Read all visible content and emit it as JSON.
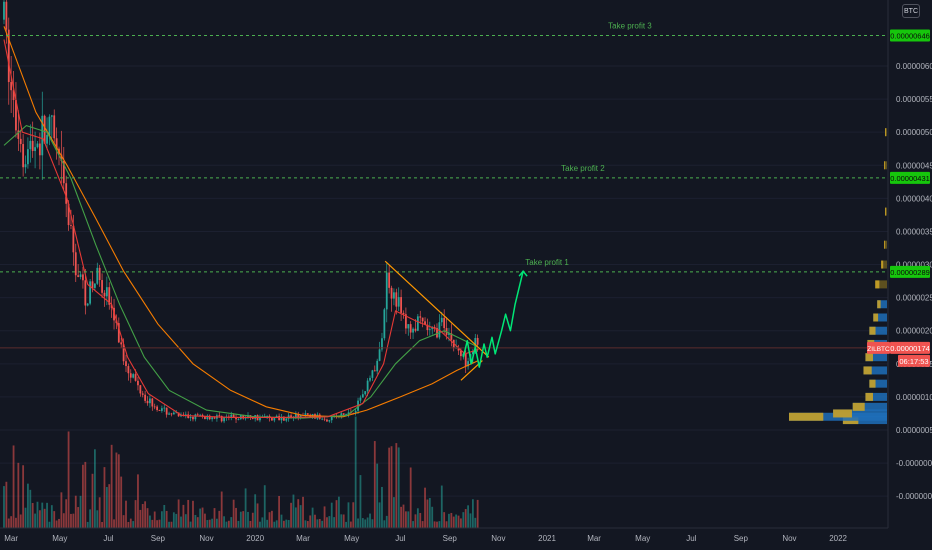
{
  "currency_button": "BTC",
  "colors": {
    "background": "#131722",
    "up": "#26a69a",
    "down": "#ef5350",
    "ma_fast": "#e53935",
    "ma_mid": "#43a047",
    "ma_slow": "#f57c00",
    "target_line": "#4caf50",
    "trendline": "#ff9800",
    "projection": "#00e676",
    "current_price": "#ef5350"
  },
  "chart_data": {
    "type": "candlestick",
    "symbol": "ZILBTC",
    "x_ticks": [
      "Mar",
      "May",
      "Jul",
      "Sep",
      "Nov",
      "2020",
      "Mar",
      "May",
      "Jul",
      "Sep",
      "Nov",
      "2021",
      "Mar",
      "May",
      "Jul",
      "Sep",
      "Nov",
      "2022"
    ],
    "y_ticks": [
      "0.00000600",
      "0.00000550",
      "0.00000500",
      "0.00000450",
      "0.00000400",
      "0.00000350",
      "0.00000300",
      "0.00000250",
      "0.00000200",
      "0.00000150",
      "0.00000100",
      "0.00000050",
      "-0.00000000",
      "-0.00000050"
    ],
    "ylim": [
      -7e-07,
      6.8e-06
    ],
    "price_series": [
      {
        "d": "2019-02-20",
        "v": 6.7e-06
      },
      {
        "d": "2019-03-05",
        "v": 5.2e-06
      },
      {
        "d": "2019-03-20",
        "v": 4.7e-06
      },
      {
        "d": "2019-04-05",
        "v": 4.9e-06
      },
      {
        "d": "2019-04-20",
        "v": 5e-06
      },
      {
        "d": "2019-05-05",
        "v": 4.2e-06
      },
      {
        "d": "2019-05-20",
        "v": 3e-06
      },
      {
        "d": "2019-06-05",
        "v": 2.5e-06
      },
      {
        "d": "2019-06-20",
        "v": 2.9e-06
      },
      {
        "d": "2019-07-05",
        "v": 2.3e-06
      },
      {
        "d": "2019-07-20",
        "v": 1.6e-06
      },
      {
        "d": "2019-08-05",
        "v": 1.2e-06
      },
      {
        "d": "2019-08-20",
        "v": 9.5e-07
      },
      {
        "d": "2019-09-05",
        "v": 8e-07
      },
      {
        "d": "2019-10-01",
        "v": 7e-07
      },
      {
        "d": "2019-11-01",
        "v": 7e-07
      },
      {
        "d": "2019-12-01",
        "v": 6.8e-07
      },
      {
        "d": "2020-01-01",
        "v": 7e-07
      },
      {
        "d": "2020-02-01",
        "v": 6.8e-07
      },
      {
        "d": "2020-03-01",
        "v": 7.2e-07
      },
      {
        "d": "2020-04-01",
        "v": 6.8e-07
      },
      {
        "d": "2020-04-20",
        "v": 7.2e-07
      },
      {
        "d": "2020-05-05",
        "v": 8e-07
      },
      {
        "d": "2020-05-20",
        "v": 1.2e-06
      },
      {
        "d": "2020-06-05",
        "v": 1.6e-06
      },
      {
        "d": "2020-06-15",
        "v": 2.9e-06
      },
      {
        "d": "2020-06-25",
        "v": 2.5e-06
      },
      {
        "d": "2020-07-10",
        "v": 2e-06
      },
      {
        "d": "2020-07-25",
        "v": 2.1e-06
      },
      {
        "d": "2020-08-10",
        "v": 1.95e-06
      },
      {
        "d": "2020-08-25",
        "v": 2.15e-06
      },
      {
        "d": "2020-09-05",
        "v": 1.8e-06
      },
      {
        "d": "2020-09-20",
        "v": 1.55e-06
      },
      {
        "d": "2020-10-01",
        "v": 1.8e-06
      },
      {
        "d": "2020-10-07",
        "v": 1.74e-06
      }
    ],
    "ma_fast": [
      {
        "d": "2019-02-20",
        "v": 6.4e-06
      },
      {
        "d": "2019-03-15",
        "v": 5e-06
      },
      {
        "d": "2019-04-10",
        "v": 4.9e-06
      },
      {
        "d": "2019-05-10",
        "v": 4e-06
      },
      {
        "d": "2019-06-05",
        "v": 2.7e-06
      },
      {
        "d": "2019-07-05",
        "v": 2.4e-06
      },
      {
        "d": "2019-07-25",
        "v": 1.6e-06
      },
      {
        "d": "2019-08-20",
        "v": 1.05e-06
      },
      {
        "d": "2019-10-01",
        "v": 7.2e-07
      },
      {
        "d": "2019-12-01",
        "v": 6.9e-07
      },
      {
        "d": "2020-02-01",
        "v": 6.9e-07
      },
      {
        "d": "2020-04-01",
        "v": 7e-07
      },
      {
        "d": "2020-05-15",
        "v": 9e-07
      },
      {
        "d": "2020-06-10",
        "v": 1.5e-06
      },
      {
        "d": "2020-06-25",
        "v": 2.3e-06
      },
      {
        "d": "2020-07-20",
        "v": 2.15e-06
      },
      {
        "d": "2020-08-20",
        "v": 2e-06
      },
      {
        "d": "2020-09-20",
        "v": 1.65e-06
      },
      {
        "d": "2020-10-07",
        "v": 1.72e-06
      }
    ],
    "ma_mid": [
      {
        "d": "2019-02-20",
        "v": 4.8e-06
      },
      {
        "d": "2019-03-20",
        "v": 5.1e-06
      },
      {
        "d": "2019-04-15",
        "v": 5e-06
      },
      {
        "d": "2019-05-15",
        "v": 4.3e-06
      },
      {
        "d": "2019-06-15",
        "v": 3.3e-06
      },
      {
        "d": "2019-07-15",
        "v": 2.4e-06
      },
      {
        "d": "2019-08-15",
        "v": 1.6e-06
      },
      {
        "d": "2019-09-15",
        "v": 1.1e-06
      },
      {
        "d": "2019-11-01",
        "v": 8e-07
      },
      {
        "d": "2020-01-01",
        "v": 7e-07
      },
      {
        "d": "2020-03-01",
        "v": 6.8e-07
      },
      {
        "d": "2020-04-25",
        "v": 7.2e-07
      },
      {
        "d": "2020-05-25",
        "v": 1e-06
      },
      {
        "d": "2020-06-25",
        "v": 1.5e-06
      },
      {
        "d": "2020-07-25",
        "v": 1.85e-06
      },
      {
        "d": "2020-08-25",
        "v": 2e-06
      },
      {
        "d": "2020-09-20",
        "v": 1.85e-06
      },
      {
        "d": "2020-10-07",
        "v": 1.75e-06
      }
    ],
    "ma_slow": [
      {
        "d": "2019-02-20",
        "v": 6.6e-06
      },
      {
        "d": "2019-04-01",
        "v": 5.3e-06
      },
      {
        "d": "2019-05-10",
        "v": 4.5e-06
      },
      {
        "d": "2019-06-15",
        "v": 3.7e-06
      },
      {
        "d": "2019-07-20",
        "v": 2.9e-06
      },
      {
        "d": "2019-09-01",
        "v": 2.1e-06
      },
      {
        "d": "2019-10-15",
        "v": 1.5e-06
      },
      {
        "d": "2019-12-01",
        "v": 1.1e-06
      },
      {
        "d": "2020-01-15",
        "v": 8.5e-07
      },
      {
        "d": "2020-03-01",
        "v": 7.2e-07
      },
      {
        "d": "2020-04-20",
        "v": 7e-07
      },
      {
        "d": "2020-05-20",
        "v": 8e-07
      },
      {
        "d": "2020-07-01",
        "v": 1e-06
      },
      {
        "d": "2020-08-10",
        "v": 1.2e-06
      },
      {
        "d": "2020-09-10",
        "v": 1.4e-06
      },
      {
        "d": "2020-10-07",
        "v": 1.55e-06
      }
    ],
    "volume_profile": [
      {
        "v": 6.5e-07,
        "w": 0.45
      },
      {
        "v": 7e-07,
        "w": 1.0
      },
      {
        "v": 7.5e-07,
        "w": 0.55
      },
      {
        "v": 8.5e-07,
        "w": 0.35
      },
      {
        "v": 1e-06,
        "w": 0.22
      },
      {
        "v": 1.2e-06,
        "w": 0.18
      },
      {
        "v": 1.4e-06,
        "w": 0.24
      },
      {
        "v": 1.6e-06,
        "w": 0.22
      },
      {
        "v": 1.8e-06,
        "w": 0.2
      },
      {
        "v": 2e-06,
        "w": 0.18
      },
      {
        "v": 2.2e-06,
        "w": 0.14
      },
      {
        "v": 2.4e-06,
        "w": 0.1
      },
      {
        "v": 2.7e-06,
        "w": 0.12
      },
      {
        "v": 3e-06,
        "w": 0.06
      },
      {
        "v": 3.3e-06,
        "w": 0.03
      },
      {
        "v": 3.8e-06,
        "w": 0.02
      },
      {
        "v": 4.5e-06,
        "w": 0.03
      },
      {
        "v": 5e-06,
        "w": 0.02
      }
    ],
    "take_profits": [
      {
        "label": "Take profit 3",
        "price": 6.46e-06,
        "badge": "0.00000646",
        "label_date": "2021-04-15"
      },
      {
        "label": "Take profit 2",
        "price": 4.31e-06,
        "badge": "0.00000431",
        "label_date": "2021-02-15"
      },
      {
        "label": "Take profit 1",
        "price": 2.89e-06,
        "badge": "0.00000289",
        "label_date": "2021-01-01"
      }
    ],
    "trendline": [
      {
        "d": "2020-06-12",
        "v": 3.05e-06
      },
      {
        "d": "2020-10-20",
        "v": 1.6e-06
      }
    ],
    "support_line": [
      {
        "d": "2020-09-15",
        "v": 1.25e-06
      },
      {
        "d": "2020-10-12",
        "v": 1.55e-06
      }
    ],
    "projection": [
      {
        "d": "2020-09-18",
        "v": 1.6e-06
      },
      {
        "d": "2020-09-23",
        "v": 1.85e-06
      },
      {
        "d": "2020-09-28",
        "v": 1.5e-06
      },
      {
        "d": "2020-10-03",
        "v": 1.75e-06
      },
      {
        "d": "2020-10-08",
        "v": 1.45e-06
      },
      {
        "d": "2020-10-14",
        "v": 1.8e-06
      },
      {
        "d": "2020-10-18",
        "v": 1.6e-06
      },
      {
        "d": "2020-10-24",
        "v": 1.9e-06
      },
      {
        "d": "2020-10-28",
        "v": 1.65e-06
      },
      {
        "d": "2020-11-05",
        "v": 2e-06
      },
      {
        "d": "2020-11-10",
        "v": 2.25e-06
      },
      {
        "d": "2020-11-16",
        "v": 2e-06
      },
      {
        "d": "2020-11-22",
        "v": 2.4e-06
      },
      {
        "d": "2020-12-02",
        "v": 2.9e-06
      }
    ],
    "current_price": {
      "symbol": "ZILBTC",
      "value": 1.74e-06,
      "badge": "0.00000174",
      "countdown": "06:17:53"
    }
  }
}
